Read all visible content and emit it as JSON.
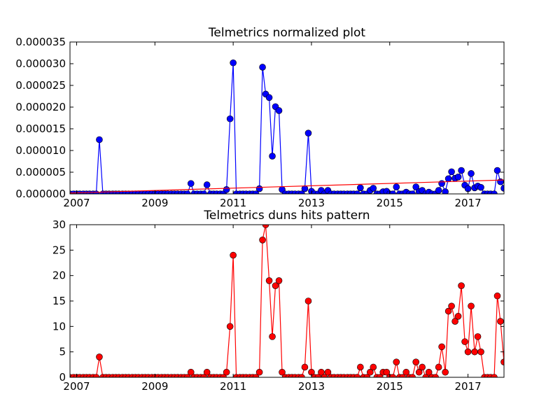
{
  "chart_data": [
    {
      "type": "line",
      "title": "Telmetrics normalized plot",
      "x": [
        2006.83,
        2006.92,
        2007.0,
        2007.08,
        2007.17,
        2007.25,
        2007.33,
        2007.42,
        2007.5,
        2007.58,
        2007.67,
        2007.75,
        2007.83,
        2007.92,
        2008.0,
        2008.08,
        2008.17,
        2008.25,
        2008.33,
        2008.42,
        2008.5,
        2008.58,
        2008.67,
        2008.75,
        2008.83,
        2008.92,
        2009.0,
        2009.08,
        2009.17,
        2009.25,
        2009.33,
        2009.42,
        2009.5,
        2009.58,
        2009.67,
        2009.75,
        2009.83,
        2009.92,
        2010.0,
        2010.08,
        2010.17,
        2010.25,
        2010.33,
        2010.42,
        2010.5,
        2010.58,
        2010.67,
        2010.75,
        2010.83,
        2010.92,
        2011.0,
        2011.08,
        2011.17,
        2011.25,
        2011.33,
        2011.42,
        2011.5,
        2011.58,
        2011.67,
        2011.75,
        2011.83,
        2011.92,
        2012.0,
        2012.08,
        2012.17,
        2012.25,
        2012.33,
        2012.42,
        2012.5,
        2012.58,
        2012.67,
        2012.75,
        2012.83,
        2012.92,
        2013.0,
        2013.08,
        2013.17,
        2013.25,
        2013.33,
        2013.42,
        2013.5,
        2013.58,
        2013.67,
        2013.75,
        2013.83,
        2013.92,
        2014.0,
        2014.08,
        2014.17,
        2014.25,
        2014.33,
        2014.42,
        2014.5,
        2014.58,
        2014.67,
        2014.75,
        2014.83,
        2014.92,
        2015.0,
        2015.08,
        2015.17,
        2015.25,
        2015.33,
        2015.42,
        2015.5,
        2015.58,
        2015.67,
        2015.75,
        2015.83,
        2015.92,
        2016.0,
        2016.08,
        2016.17,
        2016.25,
        2016.33,
        2016.42,
        2016.5,
        2016.58,
        2016.67,
        2016.75,
        2016.83,
        2016.92,
        2017.0,
        2017.08,
        2017.17,
        2017.25,
        2017.33,
        2017.42,
        2017.5,
        2017.58,
        2017.67,
        2017.75,
        2017.83,
        2017.92
      ],
      "series": [
        {
          "color": "#0000ff",
          "marker": true,
          "values": [
            0,
            0,
            0,
            0,
            0,
            0,
            0,
            0,
            0,
            1.25e-05,
            0,
            0,
            0,
            0,
            0,
            0,
            0,
            0,
            0,
            0,
            0,
            0,
            0,
            0,
            0,
            0,
            0,
            0,
            0,
            0,
            0,
            0,
            0,
            0,
            0,
            0,
            0,
            2.4e-06,
            0,
            0,
            0,
            0,
            2.1e-06,
            0,
            0,
            0,
            0,
            0,
            1e-06,
            1.73e-05,
            3.02e-05,
            0,
            0,
            0,
            0,
            0,
            0,
            0,
            1.2e-06,
            2.92e-05,
            2.3e-05,
            2.22e-05,
            8.7e-06,
            2.01e-05,
            1.92e-05,
            1e-06,
            0,
            0,
            0,
            0,
            0,
            0,
            1.2e-06,
            1.4e-05,
            6e-07,
            0,
            0,
            8e-07,
            0,
            8e-07,
            0,
            0,
            0,
            0,
            0,
            0,
            0,
            0,
            0,
            1.4e-06,
            0,
            0,
            8e-07,
            1.3e-06,
            0,
            0,
            5e-07,
            6e-07,
            0,
            0,
            1.6e-06,
            0,
            0,
            4e-07,
            0,
            0,
            1.6e-06,
            5e-07,
            8e-07,
            0,
            4e-07,
            0,
            0,
            8e-07,
            2.4e-06,
            5e-07,
            3.5e-06,
            5.1e-06,
            3.6e-06,
            3.9e-06,
            5.4e-06,
            2e-06,
            1.2e-06,
            4.7e-06,
            1.4e-06,
            1.8e-06,
            1.5e-06,
            0,
            0,
            0,
            0,
            5.4e-06,
            2.8e-06,
            1.3e-06
          ]
        },
        {
          "color": "#ff0000",
          "marker": false,
          "x": [
            2006.83,
            2017.92
          ],
          "values": [
            2e-07,
            3.2e-06
          ]
        }
      ],
      "xlim": [
        2006.83,
        2017.92
      ],
      "xticks": [
        2007,
        2009,
        2011,
        2013,
        2015,
        2017
      ],
      "ylim": [
        0,
        3.5e-05
      ],
      "yticks": [
        {
          "value": 0,
          "label": "0.000000"
        },
        {
          "value": 5e-06,
          "label": "0.000005"
        },
        {
          "value": 1e-05,
          "label": "0.000010"
        },
        {
          "value": 1.5e-05,
          "label": "0.000015"
        },
        {
          "value": 2e-05,
          "label": "0.000020"
        },
        {
          "value": 2.5e-05,
          "label": "0.000025"
        },
        {
          "value": 3e-05,
          "label": "0.000030"
        },
        {
          "value": 3.5e-05,
          "label": "0.000035"
        }
      ]
    },
    {
      "type": "line",
      "title": "Telmetrics duns hits pattern",
      "x": [
        2006.83,
        2006.92,
        2007.0,
        2007.08,
        2007.17,
        2007.25,
        2007.33,
        2007.42,
        2007.5,
        2007.58,
        2007.67,
        2007.75,
        2007.83,
        2007.92,
        2008.0,
        2008.08,
        2008.17,
        2008.25,
        2008.33,
        2008.42,
        2008.5,
        2008.58,
        2008.67,
        2008.75,
        2008.83,
        2008.92,
        2009.0,
        2009.08,
        2009.17,
        2009.25,
        2009.33,
        2009.42,
        2009.5,
        2009.58,
        2009.67,
        2009.75,
        2009.83,
        2009.92,
        2010.0,
        2010.08,
        2010.17,
        2010.25,
        2010.33,
        2010.42,
        2010.5,
        2010.58,
        2010.67,
        2010.75,
        2010.83,
        2010.92,
        2011.0,
        2011.08,
        2011.17,
        2011.25,
        2011.33,
        2011.42,
        2011.5,
        2011.58,
        2011.67,
        2011.75,
        2011.83,
        2011.92,
        2012.0,
        2012.08,
        2012.17,
        2012.25,
        2012.33,
        2012.42,
        2012.5,
        2012.58,
        2012.67,
        2012.75,
        2012.83,
        2012.92,
        2013.0,
        2013.08,
        2013.17,
        2013.25,
        2013.33,
        2013.42,
        2013.5,
        2013.58,
        2013.67,
        2013.75,
        2013.83,
        2013.92,
        2014.0,
        2014.08,
        2014.17,
        2014.25,
        2014.33,
        2014.42,
        2014.5,
        2014.58,
        2014.67,
        2014.75,
        2014.83,
        2014.92,
        2015.0,
        2015.08,
        2015.17,
        2015.25,
        2015.33,
        2015.42,
        2015.5,
        2015.58,
        2015.67,
        2015.75,
        2015.83,
        2015.92,
        2016.0,
        2016.08,
        2016.17,
        2016.25,
        2016.33,
        2016.42,
        2016.5,
        2016.58,
        2016.67,
        2016.75,
        2016.83,
        2016.92,
        2017.0,
        2017.08,
        2017.17,
        2017.25,
        2017.33,
        2017.42,
        2017.5,
        2017.58,
        2017.67,
        2017.75,
        2017.83,
        2017.92
      ],
      "series": [
        {
          "color": "#ff0000",
          "marker": true,
          "values": [
            0,
            0,
            0,
            0,
            0,
            0,
            0,
            0,
            0,
            4,
            0,
            0,
            0,
            0,
            0,
            0,
            0,
            0,
            0,
            0,
            0,
            0,
            0,
            0,
            0,
            0,
            0,
            0,
            0,
            0,
            0,
            0,
            0,
            0,
            0,
            0,
            0,
            1,
            0,
            0,
            0,
            0,
            1,
            0,
            0,
            0,
            0,
            0,
            1,
            10,
            24,
            0,
            0,
            0,
            0,
            0,
            0,
            0,
            1,
            27,
            30,
            19,
            8,
            18,
            19,
            1,
            0,
            0,
            0,
            0,
            0,
            0,
            2,
            15,
            1,
            0,
            0,
            1,
            0,
            1,
            0,
            0,
            0,
            0,
            0,
            0,
            0,
            0,
            0,
            2,
            0,
            0,
            1,
            2,
            0,
            0,
            1,
            1,
            0,
            0,
            3,
            0,
            0,
            1,
            0,
            0,
            3,
            1,
            2,
            0,
            1,
            0,
            0,
            2,
            6,
            1,
            13,
            14,
            11,
            12,
            18,
            7,
            5,
            14,
            5,
            8,
            5,
            0,
            0,
            0,
            0,
            16,
            11,
            3
          ]
        }
      ],
      "xlim": [
        2006.83,
        2017.92
      ],
      "xticks": [
        2007,
        2009,
        2011,
        2013,
        2015,
        2017
      ],
      "ylim": [
        0,
        30
      ],
      "yticks": [
        0,
        5,
        10,
        15,
        20,
        25,
        30
      ]
    }
  ]
}
